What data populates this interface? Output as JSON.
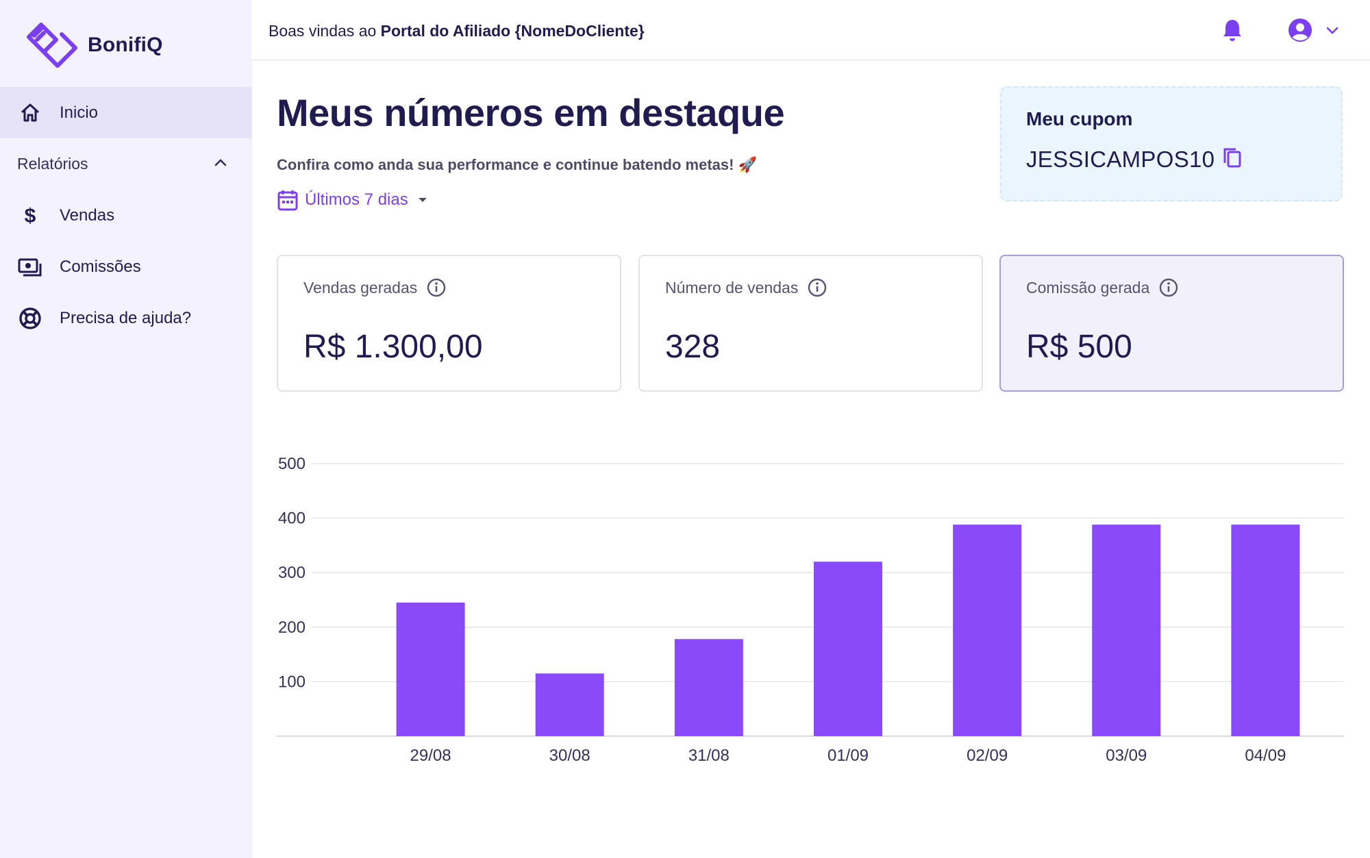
{
  "brand": {
    "name": "BonifiQ"
  },
  "sidebar": {
    "home_label": "Inicio",
    "section_label": "Relatórios",
    "items": [
      {
        "label": "Vendas",
        "icon": "dollar-icon"
      },
      {
        "label": "Comissões",
        "icon": "money-icon"
      },
      {
        "label": "Precisa de ajuda?",
        "icon": "lifebuoy-icon"
      }
    ]
  },
  "header": {
    "welcome_prefix": "Boas vindas ao",
    "welcome_strong": "Portal do Afiliado {NomeDoCliente}"
  },
  "main": {
    "title": "Meus números em destaque",
    "subtitle": "Confira como anda sua performance e continue batendo metas! 🚀",
    "date_filter": "Últimos 7 dias"
  },
  "coupon": {
    "title": "Meu cupom",
    "code": "JESSICAMPOS10"
  },
  "cards": [
    {
      "label": "Vendas geradas",
      "value": "R$ 1.300,00"
    },
    {
      "label": "Número de vendas",
      "value": "328"
    },
    {
      "label": "Comissão gerada",
      "value": "R$ 500",
      "selected": true
    }
  ],
  "colors": {
    "accent": "#7b3ff2",
    "bar": "#8a4af7",
    "text": "#211c50",
    "sidebar_bg": "#f4f2ff"
  },
  "chart_data": {
    "type": "bar",
    "categories": [
      "29/08",
      "30/08",
      "31/08",
      "01/09",
      "02/09",
      "03/09",
      "04/09"
    ],
    "values": [
      245,
      115,
      178,
      320,
      388,
      388,
      388
    ],
    "yticks": [
      100,
      200,
      300,
      400,
      500
    ],
    "ylim": [
      0,
      500
    ],
    "grid": true
  }
}
